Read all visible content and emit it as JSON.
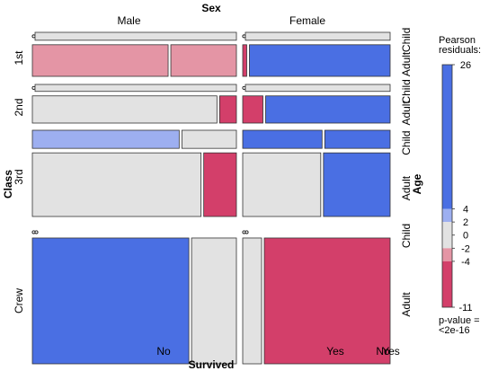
{
  "chart_data": {
    "type": "mosaic",
    "title": "",
    "variables": {
      "top": "Sex",
      "left": "Class",
      "right": "Age",
      "bottom": "Survived"
    },
    "levels": {
      "Sex": [
        "Male",
        "Female"
      ],
      "Class": [
        "1st",
        "2nd",
        "3rd",
        "Crew"
      ],
      "Age": [
        "Child",
        "Adult"
      ],
      "Survived": [
        "No",
        "Yes"
      ]
    },
    "bottom_tick_labels": [
      "No",
      "Yes",
      "No",
      "Yes"
    ],
    "cells": [
      {
        "class": "1st",
        "sex": "Male",
        "age": "Child",
        "survived": "No",
        "count": 0,
        "residual": -0.4
      },
      {
        "class": "1st",
        "sex": "Male",
        "age": "Child",
        "survived": "Yes",
        "count": 5,
        "residual": 0.1
      },
      {
        "class": "1st",
        "sex": "Male",
        "age": "Adult",
        "survived": "No",
        "count": 118,
        "residual": -2.5
      },
      {
        "class": "1st",
        "sex": "Male",
        "age": "Adult",
        "survived": "Yes",
        "count": 57,
        "residual": -3
      },
      {
        "class": "1st",
        "sex": "Female",
        "age": "Child",
        "survived": "No",
        "count": 0,
        "residual": -0.3
      },
      {
        "class": "1st",
        "sex": "Female",
        "age": "Child",
        "survived": "Yes",
        "count": 1,
        "residual": 0.2
      },
      {
        "class": "1st",
        "sex": "Female",
        "age": "Adult",
        "survived": "No",
        "count": 4,
        "residual": -5
      },
      {
        "class": "1st",
        "sex": "Female",
        "age": "Adult",
        "survived": "Yes",
        "count": 140,
        "residual": 26
      },
      {
        "class": "2nd",
        "sex": "Male",
        "age": "Child",
        "survived": "No",
        "count": 0,
        "residual": -0.7
      },
      {
        "class": "2nd",
        "sex": "Male",
        "age": "Child",
        "survived": "Yes",
        "count": 11,
        "residual": 1.5
      },
      {
        "class": "2nd",
        "sex": "Male",
        "age": "Adult",
        "survived": "No",
        "count": 154,
        "residual": 1.5
      },
      {
        "class": "2nd",
        "sex": "Male",
        "age": "Adult",
        "survived": "Yes",
        "count": 14,
        "residual": -5
      },
      {
        "class": "2nd",
        "sex": "Female",
        "age": "Child",
        "survived": "No",
        "count": 0,
        "residual": -0.5
      },
      {
        "class": "2nd",
        "sex": "Female",
        "age": "Child",
        "survived": "Yes",
        "count": 13,
        "residual": 1.2
      },
      {
        "class": "2nd",
        "sex": "Female",
        "age": "Adult",
        "survived": "No",
        "count": 13,
        "residual": -5
      },
      {
        "class": "2nd",
        "sex": "Female",
        "age": "Adult",
        "survived": "Yes",
        "count": 80,
        "residual": 12
      },
      {
        "class": "3rd",
        "sex": "Male",
        "age": "Child",
        "survived": "No",
        "count": 35,
        "residual": 2.5
      },
      {
        "class": "3rd",
        "sex": "Male",
        "age": "Child",
        "survived": "Yes",
        "count": 13,
        "residual": 0.5
      },
      {
        "class": "3rd",
        "sex": "Male",
        "age": "Adult",
        "survived": "No",
        "count": 387,
        "residual": 1
      },
      {
        "class": "3rd",
        "sex": "Male",
        "age": "Adult",
        "survived": "Yes",
        "count": 75,
        "residual": -6
      },
      {
        "class": "3rd",
        "sex": "Female",
        "age": "Child",
        "survived": "No",
        "count": 17,
        "residual": 4.5
      },
      {
        "class": "3rd",
        "sex": "Female",
        "age": "Child",
        "survived": "Yes",
        "count": 14,
        "residual": 4.5
      },
      {
        "class": "3rd",
        "sex": "Female",
        "age": "Adult",
        "survived": "No",
        "count": 89,
        "residual": 1.5
      },
      {
        "class": "3rd",
        "sex": "Female",
        "age": "Adult",
        "survived": "Yes",
        "count": 76,
        "residual": 8
      },
      {
        "class": "Crew",
        "sex": "Male",
        "age": "Child",
        "survived": "No",
        "count": 0,
        "residual": -1.5
      },
      {
        "class": "Crew",
        "sex": "Male",
        "age": "Child",
        "survived": "Yes",
        "count": 0,
        "residual": -0.7
      },
      {
        "class": "Crew",
        "sex": "Male",
        "age": "Adult",
        "survived": "No",
        "count": 670,
        "residual": 5.5
      },
      {
        "class": "Crew",
        "sex": "Male",
        "age": "Adult",
        "survived": "Yes",
        "count": 192,
        "residual": 0.5
      },
      {
        "class": "Crew",
        "sex": "Female",
        "age": "Child",
        "survived": "No",
        "count": 0,
        "residual": -0.2
      },
      {
        "class": "Crew",
        "sex": "Female",
        "age": "Child",
        "survived": "Yes",
        "count": 0,
        "residual": -0.3
      },
      {
        "class": "Crew",
        "sex": "Female",
        "age": "Adult",
        "survived": "No",
        "count": 3,
        "residual": -1
      },
      {
        "class": "Crew",
        "sex": "Female",
        "age": "Adult",
        "survived": "Yes",
        "count": 20,
        "residual": -11
      }
    ],
    "legend": {
      "title": "Pearson\nresiduals:",
      "ticks": [
        26,
        4,
        2,
        0,
        -2,
        -4,
        -11
      ],
      "max": 26,
      "min": -11,
      "p_value": "p-value =\n<2e-16",
      "placement": "right"
    },
    "colors": {
      "strong_positive": "#4a6fe3",
      "weak_positive": "#9daff0",
      "neutral": "#e2e2e2",
      "weak_negative": "#e495a5",
      "strong_negative": "#d33f6a"
    }
  }
}
